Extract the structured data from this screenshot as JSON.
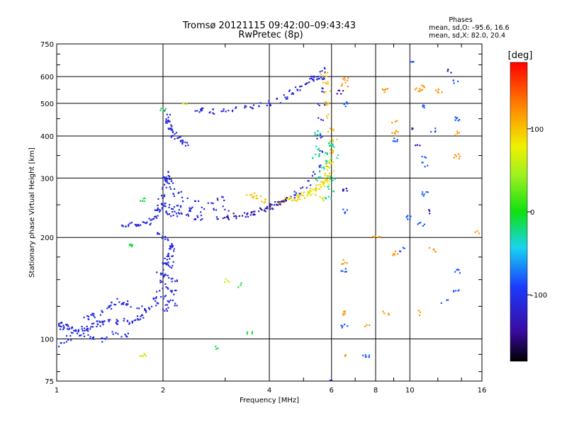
{
  "chart_data": {
    "type": "scatter",
    "title": "Tromsø 20121115 09:42:00–09:43:43",
    "subtitle": "RwPretec (8p)",
    "stats": {
      "heading": "Phases",
      "line_o": "mean, sd,O: –95.6, 16.6",
      "line_x": "mean, sd,X:  82.0, 20.4"
    },
    "xlabel": "Frequency [MHz]",
    "ylabel": "Stationary phase Virtual Height [km]",
    "x_scale": "log",
    "y_scale": "log",
    "xlim": [
      1,
      16
    ],
    "ylim": [
      75,
      750
    ],
    "x_ticks": [
      {
        "value": 1,
        "label": "1"
      },
      {
        "value": 2,
        "label": "2"
      },
      {
        "value": 4,
        "label": "4"
      },
      {
        "value": 6,
        "label": "6"
      },
      {
        "value": 8,
        "label": "8"
      },
      {
        "value": 10,
        "label": "10"
      },
      {
        "value": 16,
        "label": "16"
      }
    ],
    "y_ticks": [
      {
        "value": 75,
        "label": "75"
      },
      {
        "value": 100,
        "label": "100"
      },
      {
        "value": 200,
        "label": "200"
      },
      {
        "value": 300,
        "label": "300"
      },
      {
        "value": 400,
        "label": "400"
      },
      {
        "value": 500,
        "label": "500"
      },
      {
        "value": 600,
        "label": "600"
      },
      {
        "value": 750,
        "label": "750"
      }
    ],
    "grid": true,
    "colorbar": {
      "label": "[deg]",
      "range": [
        -180,
        180
      ],
      "ticks": [
        {
          "value": 100,
          "label": "100"
        },
        {
          "value": 0,
          "label": "0"
        },
        {
          "value": -100,
          "label": "–100"
        }
      ]
    },
    "colors": {
      "o_trace": "#1a3cff",
      "o_trace_dark": "#3a1aa8",
      "x_trace": "#d4f020",
      "x_trace_green": "#b0e830",
      "cyan": "#19c8e6",
      "orange": "#f0a020"
    },
    "series": [
      {
        "phase": -110,
        "points": [
          [
            1.0,
            110
          ],
          [
            1.02,
            111
          ],
          [
            1.04,
            109
          ],
          [
            1.06,
            110
          ],
          [
            1.08,
            108
          ],
          [
            1.1,
            107
          ],
          [
            1.13,
            106
          ],
          [
            1.16,
            108
          ],
          [
            1.2,
            107
          ],
          [
            1.24,
            109
          ],
          [
            1.28,
            110
          ],
          [
            1.32,
            111
          ],
          [
            1.36,
            112
          ],
          [
            1.4,
            113
          ],
          [
            1.45,
            112
          ],
          [
            1.5,
            113
          ],
          [
            1.55,
            114
          ],
          [
            1.6,
            113
          ],
          [
            1.66,
            115
          ],
          [
            1.72,
            117
          ],
          [
            1.78,
            120
          ],
          [
            1.84,
            125
          ],
          [
            1.9,
            132
          ],
          [
            1.95,
            140
          ],
          [
            2.0,
            148
          ],
          [
            2.03,
            155
          ],
          [
            2.06,
            165
          ],
          [
            2.08,
            178
          ],
          [
            2.1,
            190
          ]
        ]
      },
      {
        "phase": -105,
        "points": [
          [
            1.3,
            115
          ],
          [
            1.35,
            120
          ],
          [
            1.4,
            124
          ],
          [
            1.45,
            127
          ],
          [
            1.5,
            130
          ],
          [
            1.55,
            128
          ],
          [
            1.6,
            126
          ],
          [
            1.7,
            124
          ],
          [
            1.8,
            122
          ],
          [
            1.9,
            128
          ],
          [
            2.0,
            134
          ],
          [
            2.05,
            128
          ],
          [
            2.1,
            130
          ],
          [
            2.15,
            126
          ],
          [
            1.2,
            116
          ],
          [
            1.25,
            118
          ]
        ]
      },
      {
        "phase": -100,
        "points": [
          [
            1.02,
            97
          ],
          [
            1.05,
            99
          ],
          [
            1.08,
            101
          ],
          [
            1.12,
            104
          ],
          [
            1.18,
            103
          ],
          [
            1.25,
            102
          ],
          [
            1.35,
            100
          ],
          [
            1.45,
            105
          ],
          [
            1.55,
            103
          ]
        ]
      },
      {
        "phase": -110,
        "points": [
          [
            1.95,
            205
          ],
          [
            2.0,
            200
          ],
          [
            2.05,
            196
          ],
          [
            2.1,
            186
          ],
          [
            2.05,
            175
          ],
          [
            2.0,
            170
          ],
          [
            1.95,
            160
          ],
          [
            2.1,
            168
          ],
          [
            2.15,
            150
          ],
          [
            2.0,
            155
          ],
          [
            2.08,
            142
          ],
          [
            2.12,
            138
          ],
          [
            2.02,
            123
          ]
        ]
      },
      {
        "phase": -110,
        "points": [
          [
            1.55,
            220
          ],
          [
            1.6,
            220
          ],
          [
            1.65,
            221
          ],
          [
            1.7,
            220
          ],
          [
            1.75,
            221
          ],
          [
            1.8,
            223
          ],
          [
            1.85,
            225
          ],
          [
            1.9,
            230
          ],
          [
            1.93,
            240
          ],
          [
            1.95,
            250
          ],
          [
            1.97,
            265
          ],
          [
            2.0,
            280
          ],
          [
            2.03,
            300
          ],
          [
            2.05,
            310
          ],
          [
            2.08,
            295
          ],
          [
            2.1,
            270
          ]
        ]
      },
      {
        "phase": -110,
        "points": [
          [
            1.95,
            245
          ],
          [
            2.0,
            240
          ],
          [
            2.1,
            236
          ],
          [
            2.2,
            234
          ],
          [
            2.3,
            232
          ],
          [
            2.45,
            231
          ],
          [
            2.6,
            230
          ],
          [
            2.8,
            230
          ],
          [
            3.0,
            231
          ],
          [
            3.2,
            232
          ],
          [
            3.4,
            234
          ],
          [
            3.6,
            237
          ],
          [
            3.8,
            242
          ],
          [
            4.0,
            248
          ],
          [
            4.2,
            254
          ],
          [
            4.4,
            260
          ],
          [
            4.6,
            266
          ],
          [
            4.8,
            272
          ],
          [
            5.0,
            280
          ],
          [
            5.2,
            292
          ],
          [
            5.35,
            310
          ],
          [
            5.45,
            330
          ],
          [
            5.5,
            360
          ],
          [
            5.55,
            400
          ],
          [
            5.58,
            450
          ],
          [
            5.6,
            500
          ],
          [
            5.62,
            550
          ],
          [
            5.64,
            600
          ],
          [
            5.65,
            630
          ]
        ]
      },
      {
        "phase": -108,
        "points": [
          [
            2.0,
            250
          ],
          [
            2.1,
            248
          ],
          [
            2.2,
            246
          ],
          [
            2.4,
            244
          ],
          [
            2.6,
            243
          ],
          [
            2.8,
            244
          ],
          [
            3.0,
            245
          ],
          [
            2.5,
            255
          ],
          [
            2.7,
            258
          ],
          [
            2.9,
            262
          ],
          [
            2.3,
            260
          ],
          [
            2.2,
            270
          ],
          [
            2.1,
            282
          ],
          [
            2.05,
            290
          ],
          [
            2.0,
            298
          ]
        ]
      },
      {
        "phase": -112,
        "points": [
          [
            2.05,
            470
          ],
          [
            2.08,
            450
          ],
          [
            2.12,
            430
          ],
          [
            2.15,
            410
          ],
          [
            2.2,
            395
          ],
          [
            2.25,
            385
          ],
          [
            2.3,
            380
          ],
          [
            2.1,
            420
          ],
          [
            2.1,
            400
          ],
          [
            2.05,
            440
          ]
        ]
      },
      {
        "phase": -112,
        "points": [
          [
            2.5,
            478
          ],
          [
            2.6,
            480
          ],
          [
            2.75,
            475
          ],
          [
            2.9,
            478
          ],
          [
            3.0,
            480
          ],
          [
            3.2,
            484
          ],
          [
            3.4,
            488
          ],
          [
            3.6,
            492
          ],
          [
            3.8,
            497
          ],
          [
            4.0,
            503
          ],
          [
            4.2,
            512
          ],
          [
            4.4,
            525
          ],
          [
            4.6,
            540
          ],
          [
            4.8,
            555
          ],
          [
            5.0,
            570
          ],
          [
            5.2,
            585
          ],
          [
            5.3,
            595
          ],
          [
            5.4,
            600
          ]
        ]
      },
      {
        "phase": 100,
        "points": [
          [
            3.5,
            265
          ],
          [
            3.6,
            268
          ],
          [
            3.7,
            262
          ],
          [
            3.8,
            258
          ],
          [
            4.3,
            258
          ],
          [
            4.5,
            260
          ],
          [
            4.7,
            262
          ],
          [
            4.9,
            266
          ],
          [
            5.1,
            272
          ],
          [
            5.3,
            278
          ],
          [
            5.5,
            285
          ],
          [
            5.7,
            295
          ],
          [
            5.8,
            310
          ],
          [
            5.9,
            330
          ],
          [
            6.0,
            360
          ],
          [
            6.05,
            390
          ],
          [
            5.95,
            420
          ],
          [
            5.9,
            460
          ],
          [
            5.85,
            500
          ],
          [
            5.8,
            540
          ],
          [
            5.75,
            580
          ],
          [
            5.7,
            610
          ]
        ]
      },
      {
        "phase": 70,
        "points": [
          [
            4.6,
            262
          ],
          [
            4.8,
            265
          ],
          [
            5.0,
            268
          ],
          [
            5.2,
            272
          ],
          [
            5.4,
            278
          ],
          [
            5.6,
            284
          ],
          [
            5.75,
            292
          ],
          [
            5.85,
            305
          ],
          [
            5.95,
            320
          ],
          [
            6.0,
            340
          ],
          [
            5.6,
            262
          ],
          [
            5.3,
            270
          ]
        ]
      },
      {
        "phase": -25,
        "points": [
          [
            5.5,
            300
          ],
          [
            5.6,
            320
          ],
          [
            5.7,
            340
          ],
          [
            5.8,
            360
          ],
          [
            5.9,
            380
          ],
          [
            6.0,
            375
          ],
          [
            6.1,
            352
          ],
          [
            6.0,
            300
          ],
          [
            5.95,
            280
          ],
          [
            5.85,
            265
          ],
          [
            5.4,
            350
          ],
          [
            5.5,
            370
          ],
          [
            5.45,
            410
          ]
        ]
      },
      {
        "phase": -150,
        "points": [
          [
            3.0,
            232
          ],
          [
            3.2,
            233
          ],
          [
            3.4,
            235
          ],
          [
            3.6,
            238
          ],
          [
            3.8,
            243
          ],
          [
            4.0,
            249
          ],
          [
            4.2,
            255
          ],
          [
            4.4,
            261
          ]
        ]
      },
      {
        "phase": 120,
        "points": [
          [
            6.5,
            590
          ],
          [
            6.5,
            570
          ],
          [
            6.5,
            120
          ],
          [
            6.5,
            170
          ],
          [
            6.5,
            90
          ],
          [
            8.5,
            550
          ],
          [
            9.0,
            440
          ],
          [
            9.0,
            410
          ],
          [
            9.0,
            180
          ],
          [
            10.5,
            120
          ],
          [
            10.5,
            550
          ],
          [
            11.0,
            560
          ],
          [
            11.5,
            185
          ],
          [
            12.0,
            545
          ],
          [
            13.5,
            410
          ],
          [
            13.5,
            350
          ],
          [
            7.5,
            110
          ],
          [
            8.0,
            200
          ],
          [
            8.5,
            120
          ],
          [
            15.5,
            210
          ]
        ]
      },
      {
        "phase": -80,
        "points": [
          [
            6.5,
            500
          ],
          [
            6.5,
            240
          ],
          [
            6.5,
            160
          ],
          [
            6.5,
            110
          ],
          [
            9.0,
            390
          ],
          [
            9.5,
            185
          ],
          [
            10.0,
            660
          ],
          [
            9.8,
            230
          ],
          [
            10.7,
            220
          ],
          [
            11.0,
            330
          ],
          [
            11.0,
            270
          ],
          [
            11.5,
            420
          ],
          [
            11.0,
            490
          ],
          [
            11.0,
            350
          ],
          [
            13.5,
            160
          ],
          [
            13.5,
            140
          ],
          [
            13.5,
            580
          ],
          [
            12.5,
            130
          ],
          [
            13.5,
            450
          ],
          [
            7.5,
            90
          ]
        ]
      },
      {
        "phase": -135,
        "points": [
          [
            6.5,
            280
          ],
          [
            13.0,
            630
          ],
          [
            10.0,
            420
          ],
          [
            10.5,
            380
          ],
          [
            11.5,
            240
          ],
          [
            6.3,
            540
          ],
          [
            6.0,
            75
          ]
        ]
      },
      {
        "phase": -10,
        "points": [
          [
            2.0,
            480
          ],
          [
            2.8,
            95
          ],
          [
            3.5,
            105
          ],
          [
            1.75,
            260
          ],
          [
            3.3,
            145
          ],
          [
            1.6,
            190
          ]
        ]
      },
      {
        "phase": 60,
        "points": [
          [
            1.75,
            90
          ],
          [
            3.0,
            150
          ],
          [
            2.3,
            500
          ]
        ]
      }
    ]
  }
}
